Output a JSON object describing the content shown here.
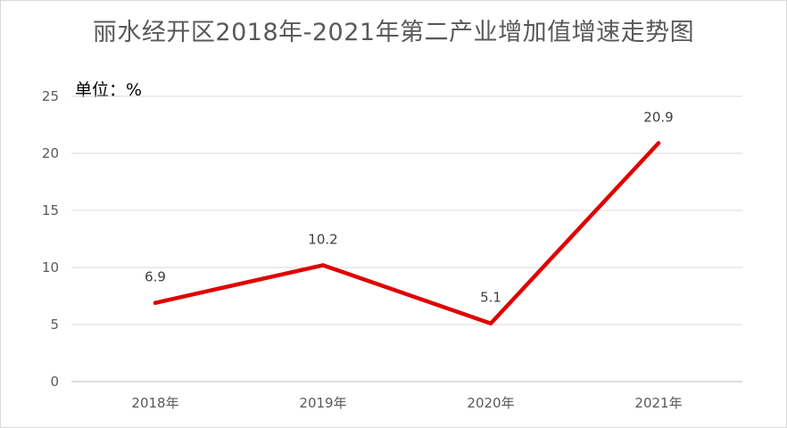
{
  "chart_data": {
    "type": "line",
    "title": "丽水经开区2018年-2021年第二产业增加值增速走势图",
    "unit_label": "单位：%",
    "categories": [
      "2018年",
      "2019年",
      "2020年",
      "2021年"
    ],
    "series": [
      {
        "values": [
          6.9,
          10.2,
          5.1,
          20.9
        ],
        "color": "#e00000"
      }
    ],
    "data_labels": [
      "6.9",
      "10.2",
      "5.1",
      "20.9"
    ],
    "ylim": [
      0,
      25
    ],
    "yticks": [
      0,
      5,
      10,
      15,
      20,
      25
    ],
    "grid": true,
    "legend": "none"
  }
}
